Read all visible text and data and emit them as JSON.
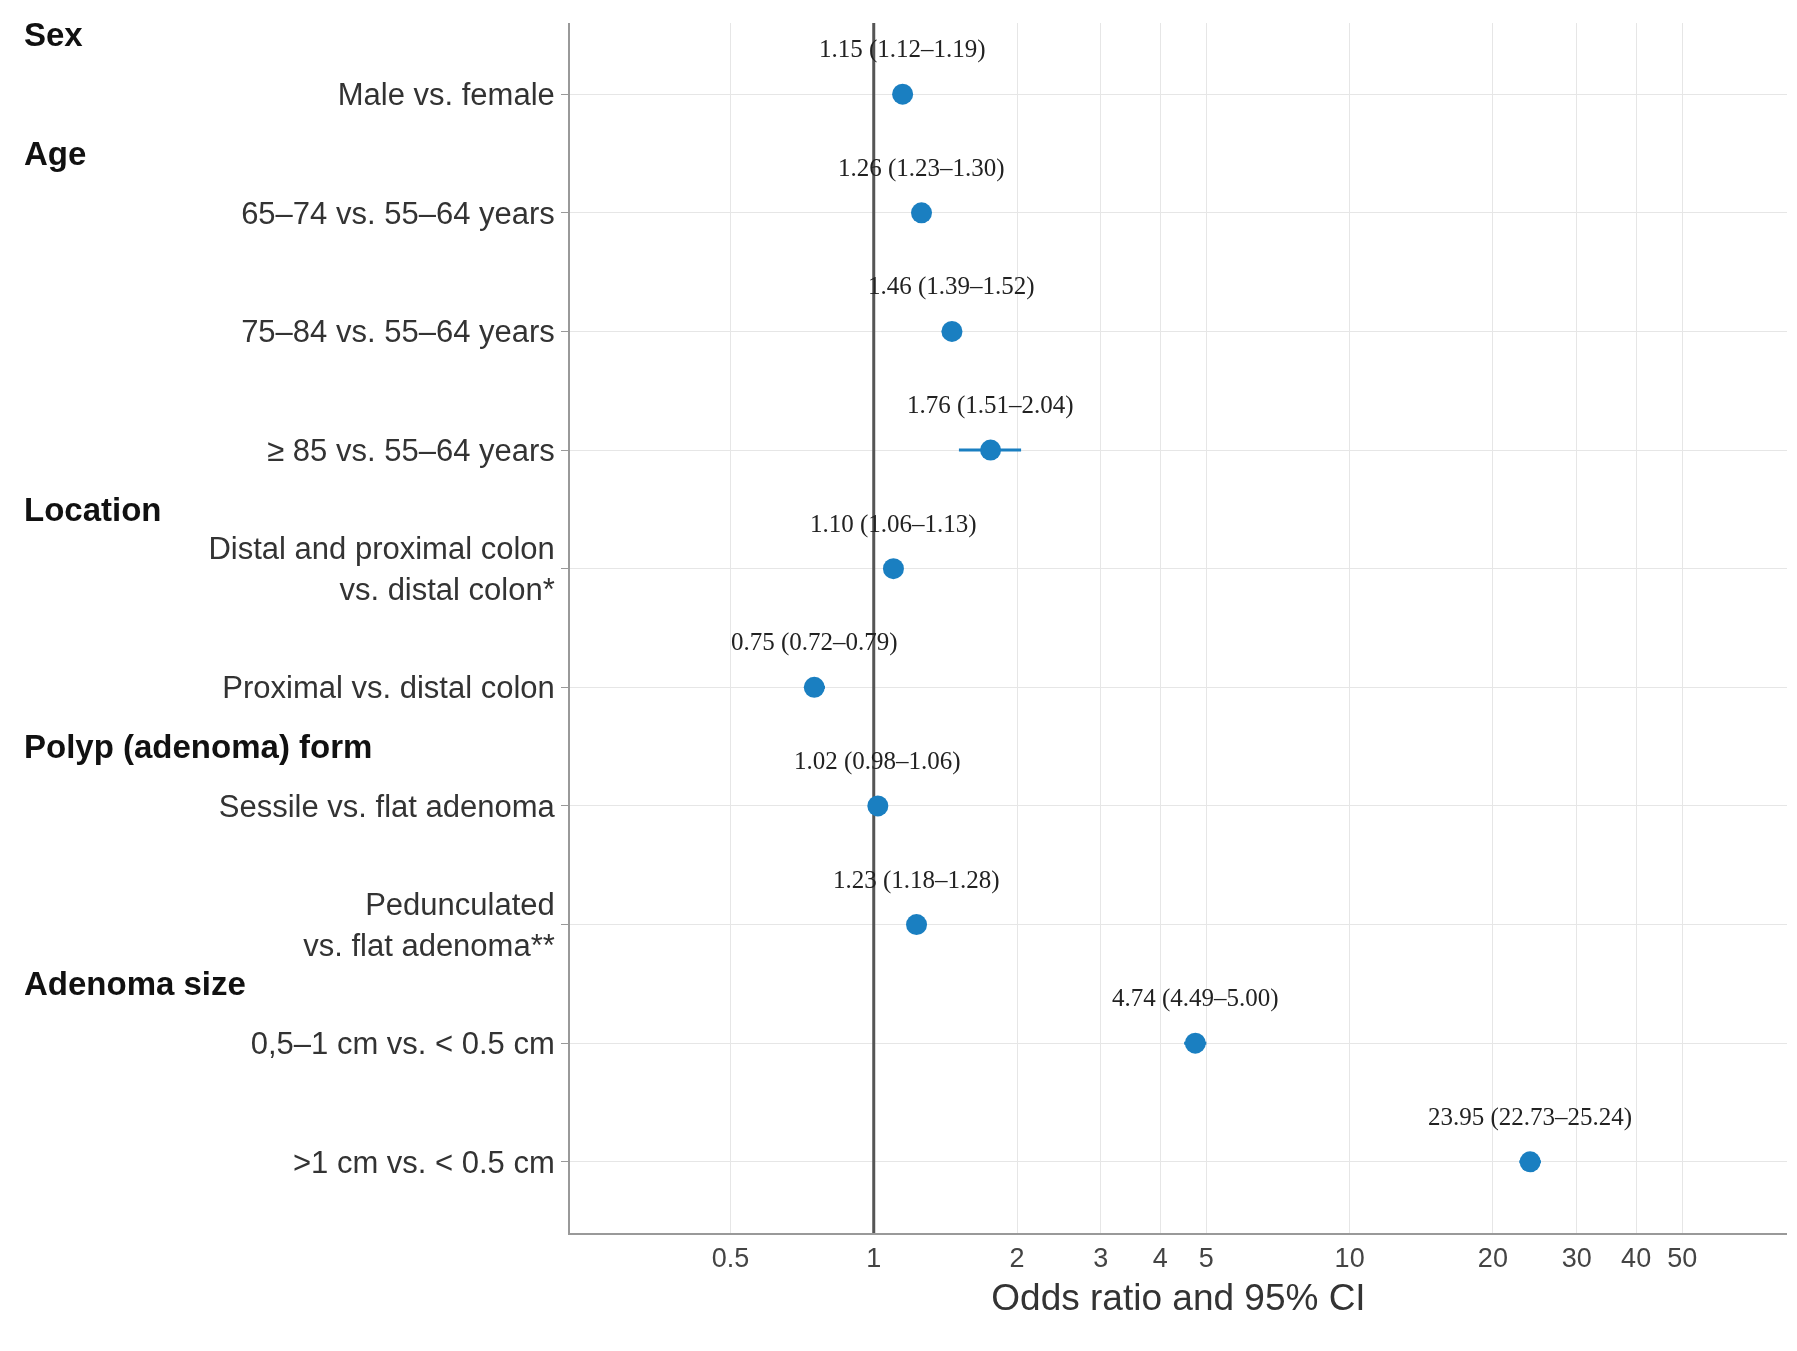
{
  "chart_data": {
    "type": "scatter",
    "orientation": "horizontal",
    "xlabel": "Odds ratio and 95% CI",
    "categories": [
      "Male vs. female",
      "65–74 vs. 55–64 years",
      "75–84 vs. 55–64 years",
      "≥ 85 vs. 55–64 years",
      "Distal and proximal colon\nvs. distal colon*",
      "Proximal vs. distal colon",
      "Sessile vs. flat adenoma",
      "Pedunculated\nvs. flat adenoma**",
      "0,5–1 cm vs. < 0.5 cm",
      ">1 cm vs. < 0.5 cm"
    ],
    "values": [
      1.15,
      1.26,
      1.46,
      1.76,
      1.1,
      0.75,
      1.02,
      1.23,
      4.74,
      23.95
    ],
    "errors": [
      null,
      null,
      [
        1.39,
        1.52
      ],
      [
        1.51,
        2.04
      ],
      null,
      [
        0.72,
        0.79
      ],
      [
        0.98,
        1.06
      ],
      [
        1.18,
        1.28
      ],
      [
        4.49,
        5.0
      ],
      [
        22.73,
        25.24
      ]
    ],
    "value_labels": [
      "1.15 (1.12–1.19)",
      "1.26 (1.23–1.30)",
      "1.46 (1.39–1.52)",
      "1.76 (1.51–2.04)",
      "1.10 (1.06–1.13)",
      "0.75 (0.72–0.79)",
      "1.02 (0.98–1.06)",
      "1.23 (1.18–1.28)",
      "4.74 (4.49–5.00)",
      "23.95 (22.73–25.24)"
    ],
    "color": "#1a7fc1",
    "marker": "circle",
    "log": "x",
    "grid": true,
    "xlim": [
      0.23,
      83
    ],
    "xticks": [
      0.5,
      1,
      2,
      3,
      4,
      5,
      10,
      20,
      30,
      40,
      50
    ],
    "ref_lines": [
      {
        "axis": "x",
        "value": 1,
        "color": "#555555"
      }
    ],
    "annotations": [
      "Sex",
      "Age",
      "Location",
      "Polyp (adenoma) form",
      "Adenoma size"
    ]
  }
}
